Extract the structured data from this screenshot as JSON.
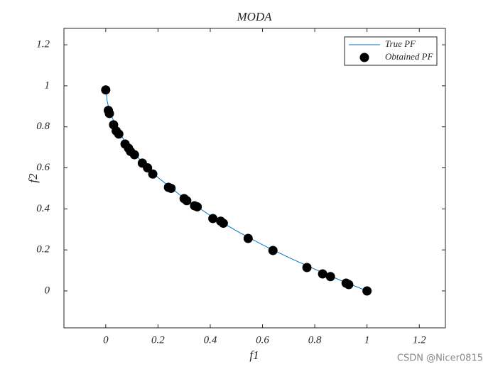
{
  "chart_data": {
    "type": "scatter",
    "title": "MODA",
    "xlabel": "f1",
    "ylabel": "f2",
    "xlim": [
      -0.16,
      1.3
    ],
    "ylim": [
      -0.18,
      1.28
    ],
    "xticks": [
      0,
      0.2,
      0.4,
      0.6,
      0.8,
      1,
      1.2
    ],
    "yticks": [
      0,
      0.2,
      0.4,
      0.6,
      0.8,
      1,
      1.2
    ],
    "legend": "upper right",
    "series": [
      {
        "name": "True PF",
        "type": "line",
        "color": "#0072bd",
        "x": [
          0,
          0.005,
          0.01,
          0.02,
          0.04,
          0.07,
          0.1,
          0.15,
          0.2,
          0.3,
          0.4,
          0.5,
          0.6,
          0.7,
          0.8,
          0.9,
          1
        ],
        "values": [
          1,
          0.929,
          0.9,
          0.859,
          0.8,
          0.735,
          0.684,
          0.613,
          0.553,
          0.452,
          0.368,
          0.293,
          0.225,
          0.163,
          0.106,
          0.051,
          0
        ]
      },
      {
        "name": "Obtained PF",
        "type": "scatter",
        "color": "#000000",
        "x": [
          0,
          0.01,
          0.014,
          0.03,
          0.04,
          0.05,
          0.074,
          0.087,
          0.095,
          0.11,
          0.14,
          0.16,
          0.18,
          0.24,
          0.25,
          0.3,
          0.31,
          0.34,
          0.35,
          0.41,
          0.44,
          0.45,
          0.545,
          0.64,
          0.77,
          0.83,
          0.86,
          0.92,
          0.93,
          1
        ],
        "values": [
          0.98,
          0.88,
          0.865,
          0.81,
          0.78,
          0.765,
          0.716,
          0.696,
          0.68,
          0.664,
          0.623,
          0.6,
          0.57,
          0.505,
          0.5,
          0.45,
          0.44,
          0.415,
          0.41,
          0.353,
          0.34,
          0.33,
          0.256,
          0.197,
          0.114,
          0.083,
          0.07,
          0.038,
          0.031,
          0
        ]
      }
    ]
  },
  "watermark": "CSDN @Nicer0815"
}
